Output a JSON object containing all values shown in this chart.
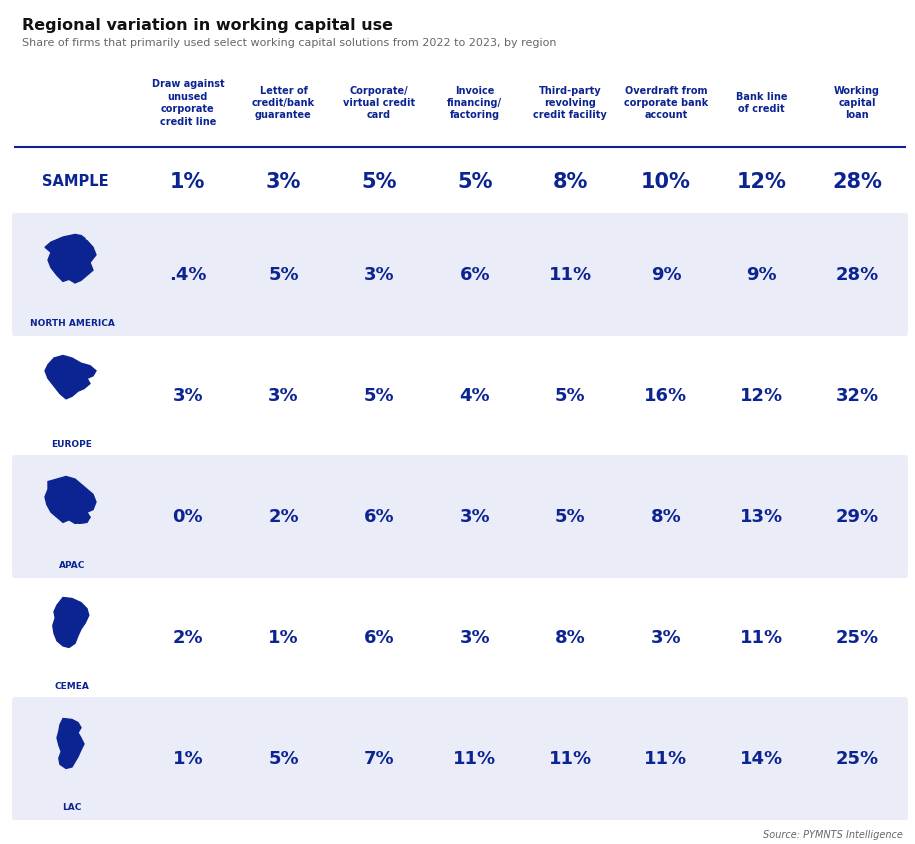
{
  "title": "Regional variation in working capital use",
  "subtitle": "Share of firms that primarily used select working capital solutions from 2022 to 2023, by region",
  "columns": [
    "Draw against\nunused\ncorporate\ncredit line",
    "Letter of\ncredit/bank\nguarantee",
    "Corporate/\nvirtual credit\ncard",
    "Invoice\nfinancing/\nfactoring",
    "Third-party\nrevolving\ncredit facility",
    "Overdraft from\ncorporate bank\naccount",
    "Bank line\nof credit",
    "Working\ncapital\nloan"
  ],
  "rows": [
    {
      "label": "SAMPLE",
      "is_sample": true,
      "has_map": false,
      "shaded": false,
      "values": [
        "1%",
        "3%",
        "5%",
        "5%",
        "8%",
        "10%",
        "12%",
        "28%"
      ]
    },
    {
      "label": "NORTH AMERICA",
      "is_sample": false,
      "has_map": true,
      "shaded": true,
      "values": [
        ".4%",
        "5%",
        "3%",
        "6%",
        "11%",
        "9%",
        "9%",
        "28%"
      ]
    },
    {
      "label": "EUROPE",
      "is_sample": false,
      "has_map": true,
      "shaded": false,
      "values": [
        "3%",
        "3%",
        "5%",
        "4%",
        "5%",
        "16%",
        "12%",
        "32%"
      ]
    },
    {
      "label": "APAC",
      "is_sample": false,
      "has_map": true,
      "shaded": true,
      "values": [
        "0%",
        "2%",
        "6%",
        "3%",
        "5%",
        "8%",
        "13%",
        "29%"
      ]
    },
    {
      "label": "CEMEA",
      "is_sample": false,
      "has_map": true,
      "shaded": false,
      "values": [
        "2%",
        "1%",
        "6%",
        "3%",
        "8%",
        "3%",
        "11%",
        "25%"
      ]
    },
    {
      "label": "LAC",
      "is_sample": false,
      "has_map": true,
      "shaded": true,
      "values": [
        "1%",
        "5%",
        "7%",
        "11%",
        "11%",
        "11%",
        "14%",
        "25%"
      ]
    }
  ],
  "colors": {
    "dark_blue": "#0c2491",
    "shaded_row_bg": "#eaecf8",
    "header_line": "#0c2491",
    "title_color": "#111111",
    "subtitle_color": "#666666",
    "source_color": "#666666",
    "white": "#ffffff"
  },
  "source_text": "Source: PYMNTS Intelligence"
}
